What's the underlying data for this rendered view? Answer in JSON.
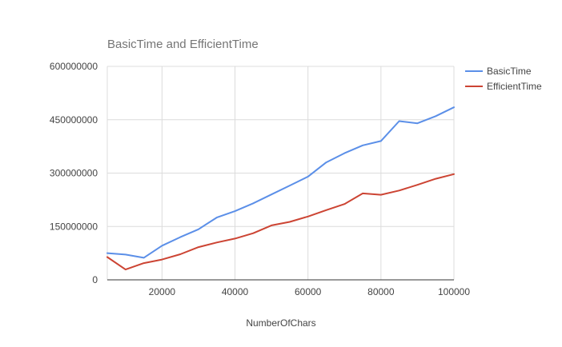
{
  "chart_data": {
    "type": "line",
    "title": "BasicTime and EfficientTime",
    "xlabel": "NumberOfChars",
    "ylabel": "",
    "xlim": [
      5000,
      100000
    ],
    "ylim": [
      0,
      600000000
    ],
    "x_ticks": [
      "20000",
      "40000",
      "60000",
      "80000",
      "100000"
    ],
    "y_ticks": [
      "0",
      "150000000",
      "300000000",
      "450000000",
      "600000000"
    ],
    "grid": true,
    "legend_position": "right",
    "x": [
      5000,
      10000,
      15000,
      20000,
      25000,
      30000,
      35000,
      40000,
      45000,
      50000,
      55000,
      60000,
      65000,
      70000,
      75000,
      80000,
      85000,
      90000,
      95000,
      100000
    ],
    "series": [
      {
        "name": "BasicTime",
        "color": "#5b8fe8",
        "values": [
          75000000,
          71000000,
          62000000,
          96000000,
          120000000,
          142000000,
          175000000,
          193000000,
          215000000,
          240000000,
          265000000,
          290000000,
          330000000,
          356000000,
          378000000,
          390000000,
          446000000,
          440000000,
          460000000,
          485000000
        ]
      },
      {
        "name": "EfficientTime",
        "color": "#cc4433",
        "values": [
          64000000,
          29000000,
          47000000,
          57000000,
          72000000,
          92000000,
          105000000,
          116000000,
          131000000,
          153000000,
          163000000,
          178000000,
          196000000,
          213000000,
          243000000,
          239000000,
          251000000,
          267000000,
          284000000,
          297000000
        ]
      }
    ]
  }
}
